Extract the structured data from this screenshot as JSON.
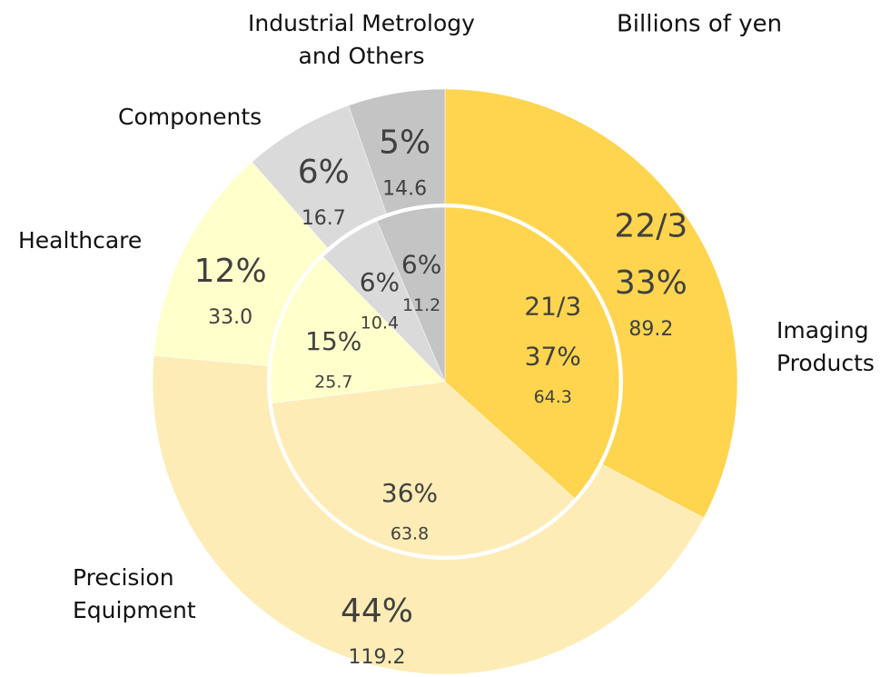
{
  "chart_data": {
    "type": "pie",
    "title": "Billions of yen",
    "categories": [
      [
        "Imaging",
        "Products"
      ],
      [
        "Precision",
        "Equipment"
      ],
      [
        "Healthcare"
      ],
      [
        "Components"
      ],
      [
        "Industrial Metrology",
        "and Others"
      ]
    ],
    "colors": [
      "#ffd54f",
      "#fdecb6",
      "#ffffcc",
      "#dadada",
      "#c4c4c4"
    ],
    "series": [
      {
        "name": "22/3",
        "values": [
          89.2,
          119.2,
          33.0,
          16.7,
          14.6
        ],
        "value_labels": [
          "89.2",
          "119.2",
          "33.0",
          "16.7",
          "14.6"
        ],
        "percent_labels": [
          "33%",
          "44%",
          "12%",
          "6%",
          "5%"
        ]
      },
      {
        "name": "21/3",
        "values": [
          64.3,
          63.8,
          25.7,
          10.4,
          11.2
        ],
        "value_labels": [
          "64.3",
          "63.8",
          "25.7",
          "10.4",
          "11.2"
        ],
        "percent_labels": [
          "37%",
          "36%",
          "15%",
          "6%",
          "6%"
        ]
      }
    ]
  }
}
